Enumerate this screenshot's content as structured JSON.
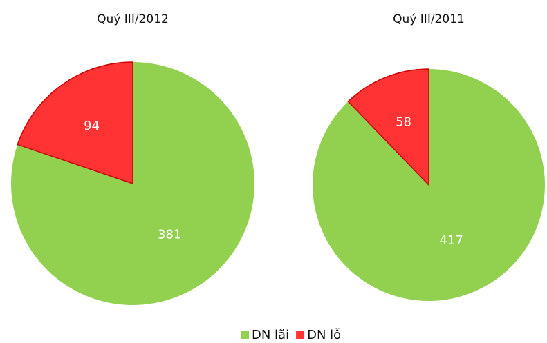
{
  "chart_data": [
    {
      "type": "pie",
      "title": "Quý III/2012",
      "categories": [
        "DN lãi",
        "DN lỗ"
      ],
      "values": [
        381,
        94
      ],
      "colors": [
        "#92d050",
        "#ff3333"
      ],
      "legend": "bottom"
    },
    {
      "type": "pie",
      "title": "Quý III/2011",
      "categories": [
        "DN lãi",
        "DN lỗ"
      ],
      "values": [
        417,
        58
      ],
      "colors": [
        "#92d050",
        "#ff3333"
      ],
      "legend": "bottom"
    }
  ]
}
